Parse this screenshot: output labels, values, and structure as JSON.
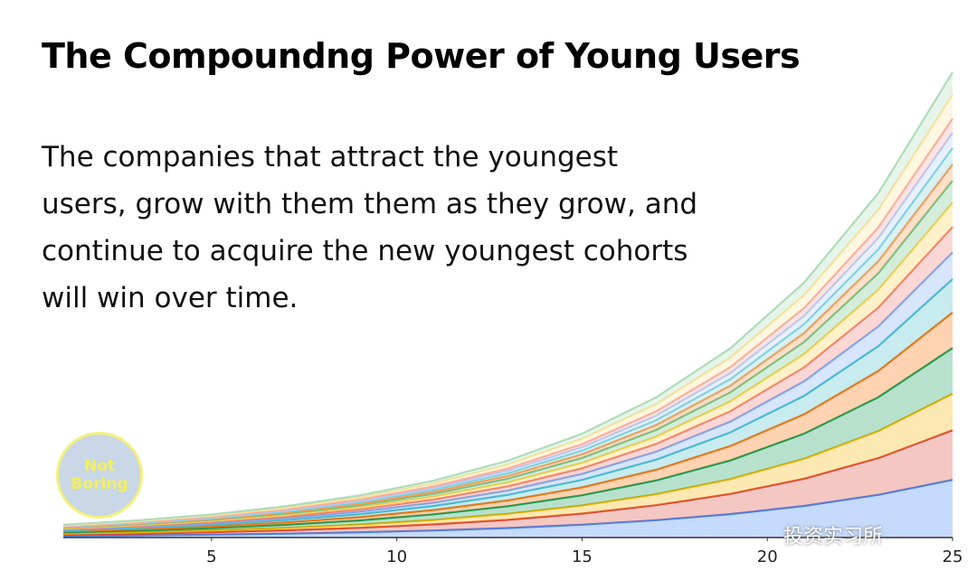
{
  "chart_data": {
    "type": "stacked-area",
    "title": "The Compoundng Power of Young Users",
    "subtitle": "The companies that attract the youngest users, grow with them them as they grow, and continue to acquire the new youngest cohorts will win over time.",
    "x": [
      1,
      3,
      5,
      7,
      9,
      11,
      13,
      15,
      17,
      19,
      21,
      23,
      25
    ],
    "xlim": [
      1,
      25
    ],
    "xticks": [
      5,
      10,
      15,
      20,
      25
    ],
    "ylim": [
      0,
      100
    ],
    "series": [
      {
        "color": "#4285F4",
        "values": [
          0.32,
          0.43,
          0.58,
          0.79,
          1.06,
          1.43,
          1.93,
          2.61,
          3.52,
          4.76,
          6.42,
          8.67,
          11.7
        ]
      },
      {
        "color": "#DB4437",
        "values": [
          0.28,
          0.37,
          0.5,
          0.68,
          0.92,
          1.24,
          1.67,
          2.25,
          3.04,
          4.11,
          5.54,
          7.48,
          10.1
        ]
      },
      {
        "color": "#F4B400",
        "values": [
          0.2,
          0.27,
          0.37,
          0.5,
          0.67,
          0.91,
          1.22,
          1.65,
          2.23,
          3.01,
          4.06,
          5.48,
          7.4
        ]
      },
      {
        "color": "#0F9D58",
        "values": [
          0.25,
          0.34,
          0.46,
          0.62,
          0.84,
          1.14,
          1.54,
          2.07,
          2.8,
          3.78,
          5.1,
          6.89,
          9.3
        ]
      },
      {
        "color": "#FF6D01",
        "values": [
          0.2,
          0.27,
          0.36,
          0.48,
          0.65,
          0.88,
          1.19,
          1.61,
          2.17,
          2.93,
          3.95,
          5.33,
          7.2
        ]
      },
      {
        "color": "#46BDC6",
        "values": [
          0.19,
          0.25,
          0.34,
          0.46,
          0.62,
          0.83,
          1.12,
          1.52,
          2.05,
          2.76,
          3.73,
          5.04,
          6.8
        ]
      },
      {
        "color": "#7BAAF7",
        "values": [
          0.15,
          0.2,
          0.27,
          0.36,
          0.49,
          0.66,
          0.89,
          1.2,
          1.63,
          2.2,
          2.96,
          4.0,
          5.4
        ]
      },
      {
        "color": "#F07B72",
        "values": [
          0.14,
          0.19,
          0.26,
          0.35,
          0.47,
          0.64,
          0.86,
          1.16,
          1.57,
          2.11,
          2.85,
          3.85,
          5.2
        ]
      },
      {
        "color": "#FCD04F",
        "values": [
          0.13,
          0.18,
          0.24,
          0.33,
          0.44,
          0.6,
          0.81,
          1.09,
          1.48,
          1.99,
          2.69,
          3.63,
          4.9
        ]
      },
      {
        "color": "#71C287",
        "values": [
          0.12,
          0.17,
          0.22,
          0.3,
          0.41,
          0.55,
          0.74,
          1.0,
          1.36,
          1.83,
          2.47,
          3.33,
          4.5
        ]
      },
      {
        "color": "#FF994D",
        "values": [
          0.09,
          0.12,
          0.16,
          0.22,
          0.3,
          0.4,
          0.55,
          0.74,
          0.99,
          1.34,
          1.81,
          2.44,
          3.3
        ]
      },
      {
        "color": "#7ED1D7",
        "values": [
          0.09,
          0.12,
          0.16,
          0.22,
          0.3,
          0.4,
          0.55,
          0.74,
          0.99,
          1.34,
          1.81,
          2.44,
          3.3
        ]
      },
      {
        "color": "#B3CEFB",
        "values": [
          0.08,
          0.11,
          0.15,
          0.21,
          0.28,
          0.38,
          0.51,
          0.69,
          0.93,
          1.26,
          1.7,
          2.3,
          3.1
        ]
      },
      {
        "color": "#F7A7A0",
        "values": [
          0.08,
          0.11,
          0.14,
          0.19,
          0.26,
          0.36,
          0.48,
          0.65,
          0.87,
          1.18,
          1.59,
          2.15,
          2.9
        ]
      },
      {
        "color": "#FDE49B",
        "values": [
          0.13,
          0.18,
          0.24,
          0.32,
          0.44,
          0.59,
          0.79,
          1.07,
          1.45,
          1.95,
          2.63,
          3.56,
          4.8
        ]
      },
      {
        "color": "#AEDCBA",
        "values": [
          0.13,
          0.17,
          0.23,
          0.31,
          0.42,
          0.56,
          0.76,
          1.03,
          1.39,
          1.87,
          2.52,
          3.41,
          4.6
        ]
      }
    ]
  },
  "logo": "Not Boring",
  "watermark": "投资实习所"
}
